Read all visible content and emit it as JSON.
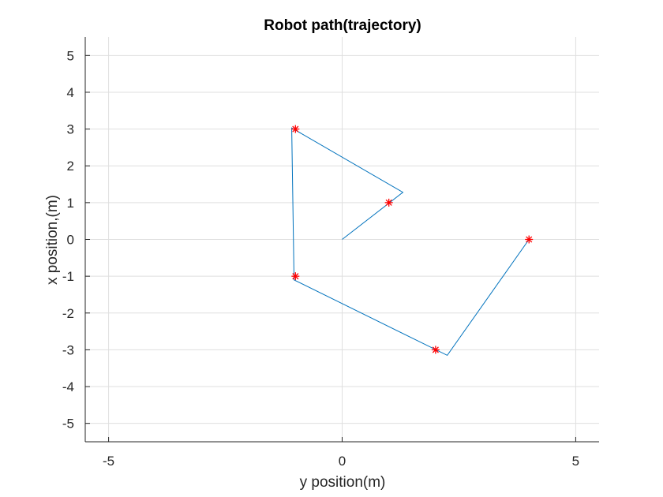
{
  "chart_data": {
    "type": "line",
    "title": "Robot path(trajectory)",
    "xlabel": "y position(m)",
    "ylabel": "x position,(m)",
    "xlim": [
      -5.5,
      5.5
    ],
    "ylim": [
      -5.5,
      5.5
    ],
    "xticks": [
      -5,
      0,
      5
    ],
    "xtick_labels": [
      "-5",
      "0",
      "5"
    ],
    "yticks": [
      5,
      4,
      3,
      2,
      1,
      0,
      -1,
      -2,
      -3,
      -4,
      -5
    ],
    "ytick_labels": [
      "5",
      "4",
      "3",
      "2",
      "1",
      "0",
      "-1",
      "-2",
      "-3",
      "-4",
      "-5"
    ],
    "grid": true,
    "series": [
      {
        "kind": "line",
        "color": "#0072BD",
        "x": [
          0,
          1.3,
          -1.08,
          -1.03,
          2.25,
          4
        ],
        "y": [
          0,
          1.28,
          3.03,
          -1.1,
          -3.15,
          0
        ]
      },
      {
        "kind": "markers",
        "marker": "asterisk",
        "color": "#FF0000",
        "x": [
          1,
          -1,
          -1,
          2,
          4
        ],
        "y": [
          1,
          3,
          -1,
          -3,
          0
        ]
      }
    ]
  }
}
